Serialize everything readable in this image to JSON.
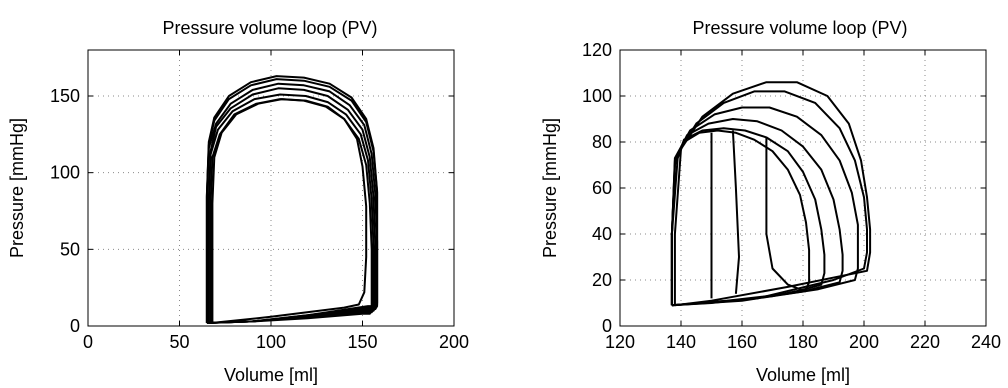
{
  "chart_data": [
    {
      "type": "line",
      "title": "Pressure volume loop (PV)",
      "xlabel": "Volume [ml]",
      "ylabel": "Pressure [mmHg]",
      "xlim": [
        0,
        200
      ],
      "ylim": [
        0,
        180
      ],
      "xticks": [
        0,
        50,
        100,
        150,
        200
      ],
      "yticks": [
        0,
        50,
        100,
        150
      ],
      "grid": true,
      "line_color": "#000000",
      "series": [
        {
          "x": [
            67,
            67,
            67,
            68,
            72,
            80,
            92,
            105,
            118,
            130,
            140,
            148,
            152,
            154,
            155,
            155,
            155,
            155,
            154,
            150,
            120,
            90,
            67
          ],
          "y": [
            2,
            40,
            80,
            110,
            125,
            138,
            145,
            148,
            147,
            143,
            135,
            122,
            105,
            80,
            50,
            25,
            15,
            10,
            8,
            8,
            5,
            3,
            2
          ]
        },
        {
          "x": [
            66,
            66,
            66,
            67,
            71,
            79,
            91,
            105,
            119,
            131,
            141,
            149,
            153,
            155,
            156,
            156,
            156,
            156,
            155,
            151,
            120,
            90,
            66
          ],
          "y": [
            2,
            40,
            80,
            112,
            128,
            140,
            148,
            151,
            150,
            146,
            138,
            125,
            108,
            82,
            52,
            26,
            16,
            11,
            9,
            9,
            6,
            3,
            2
          ]
        },
        {
          "x": [
            66,
            66,
            66,
            67,
            70,
            78,
            90,
            104,
            118,
            131,
            142,
            150,
            154,
            156,
            157,
            157,
            157,
            157,
            156,
            152,
            120,
            90,
            66
          ],
          "y": [
            2,
            40,
            82,
            114,
            130,
            142,
            151,
            155,
            154,
            150,
            141,
            128,
            110,
            84,
            53,
            27,
            17,
            12,
            10,
            10,
            6,
            3,
            2
          ]
        },
        {
          "x": [
            65,
            65,
            65,
            66,
            70,
            78,
            90,
            104,
            118,
            132,
            143,
            151,
            155,
            157,
            158,
            158,
            158,
            158,
            157,
            153,
            120,
            90,
            65
          ],
          "y": [
            2,
            40,
            84,
            116,
            132,
            145,
            154,
            158,
            157,
            153,
            144,
            131,
            112,
            86,
            55,
            28,
            18,
            13,
            11,
            11,
            6,
            3,
            2
          ]
        },
        {
          "x": [
            65,
            65,
            65,
            66,
            69,
            77,
            89,
            103,
            118,
            132,
            144,
            152,
            156,
            158,
            158,
            158,
            158,
            158,
            157,
            153,
            120,
            90,
            65
          ],
          "y": [
            2,
            40,
            85,
            118,
            134,
            148,
            157,
            161,
            160,
            156,
            147,
            133,
            114,
            87,
            56,
            29,
            19,
            14,
            12,
            12,
            7,
            3,
            2
          ]
        },
        {
          "x": [
            65,
            65,
            65,
            66,
            69,
            77,
            89,
            103,
            118,
            132,
            144,
            152,
            156,
            158,
            158,
            158,
            158,
            158,
            157,
            153,
            120,
            90,
            65
          ],
          "y": [
            2,
            40,
            86,
            120,
            136,
            150,
            159,
            163,
            162,
            158,
            149,
            135,
            116,
            88,
            57,
            30,
            20,
            15,
            13,
            13,
            7,
            3,
            2
          ]
        },
        {
          "x": [
            68,
            68,
            68,
            69,
            73,
            81,
            93,
            106,
            119,
            131,
            140,
            147,
            150,
            152,
            152,
            151,
            148,
            140,
            100,
            68
          ],
          "y": [
            2,
            40,
            80,
            110,
            126,
            138,
            145,
            148,
            147,
            143,
            135,
            122,
            104,
            78,
            45,
            22,
            14,
            12,
            6,
            2
          ]
        }
      ]
    },
    {
      "type": "line",
      "title": "Pressure volume loop (PV)",
      "xlabel": "Volume [ml]",
      "ylabel": "Pressure [mmHg]",
      "xlim": [
        120,
        240
      ],
      "ylim": [
        0,
        120
      ],
      "xticks": [
        120,
        140,
        160,
        180,
        200,
        220,
        240
      ],
      "yticks": [
        0,
        20,
        40,
        60,
        80,
        100,
        120
      ],
      "grid": true,
      "line_color": "#000000",
      "series": [
        {
          "x": [
            137,
            137,
            138,
            141,
            146,
            152,
            158,
            164,
            170,
            175,
            179,
            181,
            182,
            182,
            182,
            181,
            170,
            150,
            137
          ],
          "y": [
            9,
            40,
            70,
            80,
            84,
            85,
            84,
            81,
            76,
            68,
            57,
            45,
            33,
            25,
            19,
            16,
            13,
            10,
            9
          ]
        },
        {
          "x": [
            137,
            137,
            138,
            141,
            147,
            154,
            161,
            168,
            175,
            180,
            184,
            186,
            187,
            187,
            186,
            175,
            155,
            137
          ],
          "y": [
            9,
            40,
            70,
            81,
            85,
            86,
            85,
            82,
            76,
            67,
            55,
            42,
            31,
            23,
            18,
            14,
            11,
            9
          ]
        },
        {
          "x": [
            137,
            137,
            138,
            142,
            149,
            157,
            165,
            173,
            180,
            186,
            190,
            192,
            193,
            193,
            192,
            180,
            158,
            137
          ],
          "y": [
            9,
            40,
            72,
            83,
            88,
            90,
            89,
            85,
            78,
            68,
            55,
            42,
            31,
            24,
            19,
            15,
            11,
            9
          ]
        },
        {
          "x": [
            137,
            137,
            138,
            143,
            151,
            160,
            169,
            178,
            186,
            192,
            196,
            198,
            198,
            198,
            197,
            185,
            160,
            137
          ],
          "y": [
            9,
            40,
            73,
            85,
            92,
            95,
            95,
            91,
            83,
            72,
            58,
            44,
            32,
            25,
            20,
            16,
            11,
            9
          ]
        },
        {
          "x": [
            137,
            137,
            139,
            145,
            154,
            164,
            174,
            184,
            192,
            197,
            200,
            201,
            201,
            200,
            190,
            165,
            137
          ],
          "y": [
            9,
            40,
            75,
            88,
            97,
            102,
            102,
            97,
            86,
            72,
            56,
            42,
            32,
            25,
            20,
            12,
            9
          ]
        },
        {
          "x": [
            138,
            138,
            140,
            147,
            157,
            168,
            178,
            188,
            195,
            199,
            201,
            202,
            202,
            201,
            175,
            150,
            138
          ],
          "y": [
            9,
            40,
            77,
            91,
            101,
            106,
            106,
            100,
            88,
            72,
            56,
            42,
            32,
            24,
            17,
            11,
            9
          ]
        },
        {
          "x": [
            157,
            158,
            159,
            158
          ],
          "y": [
            85,
            60,
            30,
            14
          ]
        },
        {
          "x": [
            150,
            150,
            150
          ],
          "y": [
            84,
            50,
            12
          ]
        },
        {
          "x": [
            168,
            168,
            170,
            175,
            181
          ],
          "y": [
            82,
            40,
            25,
            18,
            15
          ]
        }
      ]
    }
  ]
}
